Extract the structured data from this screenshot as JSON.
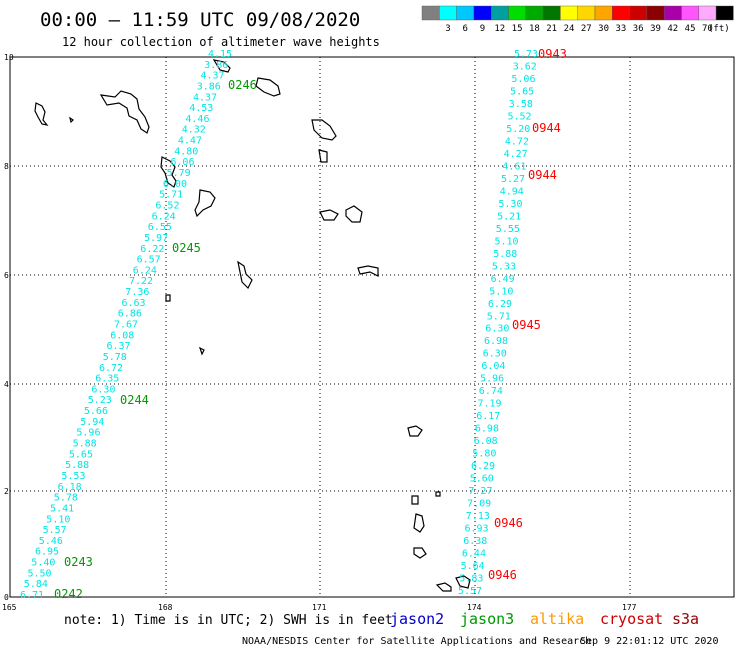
{
  "header": {
    "title": "00:00 – 11:59 UTC 09/08/2020",
    "subtitle": "12 hour collection of altimeter wave heights"
  },
  "legend": {
    "unit": "(ft)",
    "swatches": [
      {
        "label": "",
        "color": "#808080"
      },
      {
        "label": "3",
        "color": "#00ffff"
      },
      {
        "label": "6",
        "color": "#00c8ff"
      },
      {
        "label": "9",
        "color": "#0000ff"
      },
      {
        "label": "12",
        "color": "#00a0a0"
      },
      {
        "label": "15",
        "color": "#00dd00"
      },
      {
        "label": "18",
        "color": "#00aa00"
      },
      {
        "label": "21",
        "color": "#007700"
      },
      {
        "label": "24",
        "color": "#ffff00"
      },
      {
        "label": "27",
        "color": "#ffd700"
      },
      {
        "label": "30",
        "color": "#ffa500"
      },
      {
        "label": "33",
        "color": "#ff0000"
      },
      {
        "label": "36",
        "color": "#cc0000"
      },
      {
        "label": "39",
        "color": "#8b0000"
      },
      {
        "label": "42",
        "color": "#aa00aa"
      },
      {
        "label": "45",
        "color": "#ff55ff"
      },
      {
        "label": "70",
        "color": "#ffaaff"
      },
      {
        "label": "",
        "color": "#000000"
      }
    ]
  },
  "axes": {
    "y_ticks": [
      "10",
      "8",
      "6",
      "4",
      "2",
      "0"
    ],
    "x_ticks": [
      "165",
      "168",
      "171",
      "174",
      "177"
    ]
  },
  "tracks": [
    {
      "values": [
        "6.71",
        "5.84",
        "5.50",
        "5.40",
        "6.95",
        "5.46",
        "5.57",
        "5.10",
        "5.41",
        "5.78",
        "6.18",
        "5.53",
        "5.88",
        "5.65",
        "5.88",
        "5.96",
        "5.94",
        "5.66",
        "5.23",
        "6.30",
        "6.35",
        "6.72",
        "5.78",
        "6.37",
        "6.08",
        "7.67",
        "6.86",
        "6.63",
        "7.36",
        "7.22",
        "6.24",
        "6.57",
        "6.22",
        "5.97",
        "6.55",
        "6.24",
        "6.52",
        "5.71",
        "6.00",
        "5.79",
        "6.06",
        "4.80",
        "4.47",
        "4.32",
        "4.46",
        "4.53",
        "4.37",
        "3.86",
        "4.37",
        "3.86",
        "4.15"
      ],
      "times": [
        {
          "label": "0242"
        },
        {
          "label": "0243"
        },
        {
          "label": "0244"
        },
        {
          "label": "0245"
        },
        {
          "label": "0246"
        }
      ]
    },
    {
      "values": [
        "5.57",
        "5.83",
        "5.64",
        "6.44",
        "6.38",
        "6.93",
        "7.13",
        "7.09",
        "7.27",
        "5.60",
        "6.29",
        "5.80",
        "6.08",
        "6.98",
        "6.17",
        "7.19",
        "6.74",
        "5.96",
        "6.04",
        "6.30",
        "6.98",
        "6.30",
        "5.71",
        "6.29",
        "5.10",
        "6.49",
        "5.33",
        "5.88",
        "5.10",
        "5.55",
        "5.21",
        "5.30",
        "4.94",
        "5.27",
        "4.61",
        "4.27",
        "4.72",
        "5.20",
        "5.52",
        "3.58",
        "5.65",
        "5.06",
        "3.62",
        "5.73"
      ],
      "times": [
        {
          "label": "0943"
        },
        {
          "label": "0944"
        },
        {
          "label": "0944"
        },
        {
          "label": "0945"
        },
        {
          "label": "0946"
        },
        {
          "label": "0946"
        }
      ]
    }
  ],
  "footer": {
    "note": "note: 1) Time is in UTC; 2) SWH is in feet",
    "satellites": [
      {
        "name": "jason2",
        "color": "#0000cc"
      },
      {
        "name": "jason3",
        "color": "#009900"
      },
      {
        "name": "altika",
        "color": "#ff9900"
      },
      {
        "name": "cryosat",
        "color": "#cc0000"
      },
      {
        "name": "s3a",
        "color": "#990000"
      }
    ],
    "credit": "NOAA/NESDIS Center for Satellite Applications and Research",
    "timestamp": "Sep  9 22:01:12 UTC 2020"
  },
  "colors": {
    "track_values": "#00e5e5",
    "track1_time": "#009900",
    "track2_time": "#ff0000"
  }
}
